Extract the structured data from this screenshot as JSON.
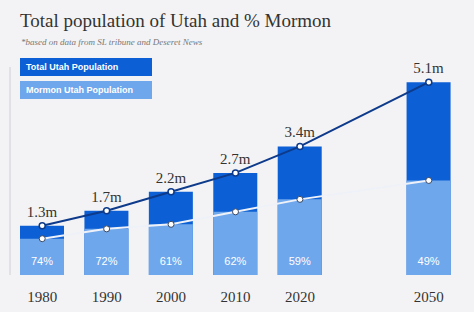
{
  "chart_data": {
    "type": "bar",
    "title": "Total population of Utah and % Mormon",
    "subtitle": "*based on data from SL tribune and Deseret News",
    "categories": [
      "1980",
      "1990",
      "2000",
      "2010",
      "2020",
      null,
      "2050"
    ],
    "series": [
      {
        "name": "Total Utah Population",
        "color": "#0c5fd4",
        "values": [
          1.3,
          1.7,
          2.2,
          2.7,
          3.4,
          null,
          5.1
        ],
        "value_labels": [
          "1.3m",
          "1.7m",
          "2.2m",
          "2.7m",
          "3.4m",
          null,
          "5.1m"
        ],
        "data_labels": true
      },
      {
        "name": "Mormon Utah Population",
        "color": "#6fa7ec",
        "values": [
          0.96,
          1.22,
          1.34,
          1.67,
          2.0,
          null,
          2.5
        ],
        "share_labels": [
          "74%",
          "72%",
          "61%",
          "62%",
          "59%",
          null,
          "49%"
        ]
      }
    ],
    "ylim": [
      0,
      5.5
    ],
    "tick_labels": "x",
    "legend": "top-left",
    "grid": false
  }
}
